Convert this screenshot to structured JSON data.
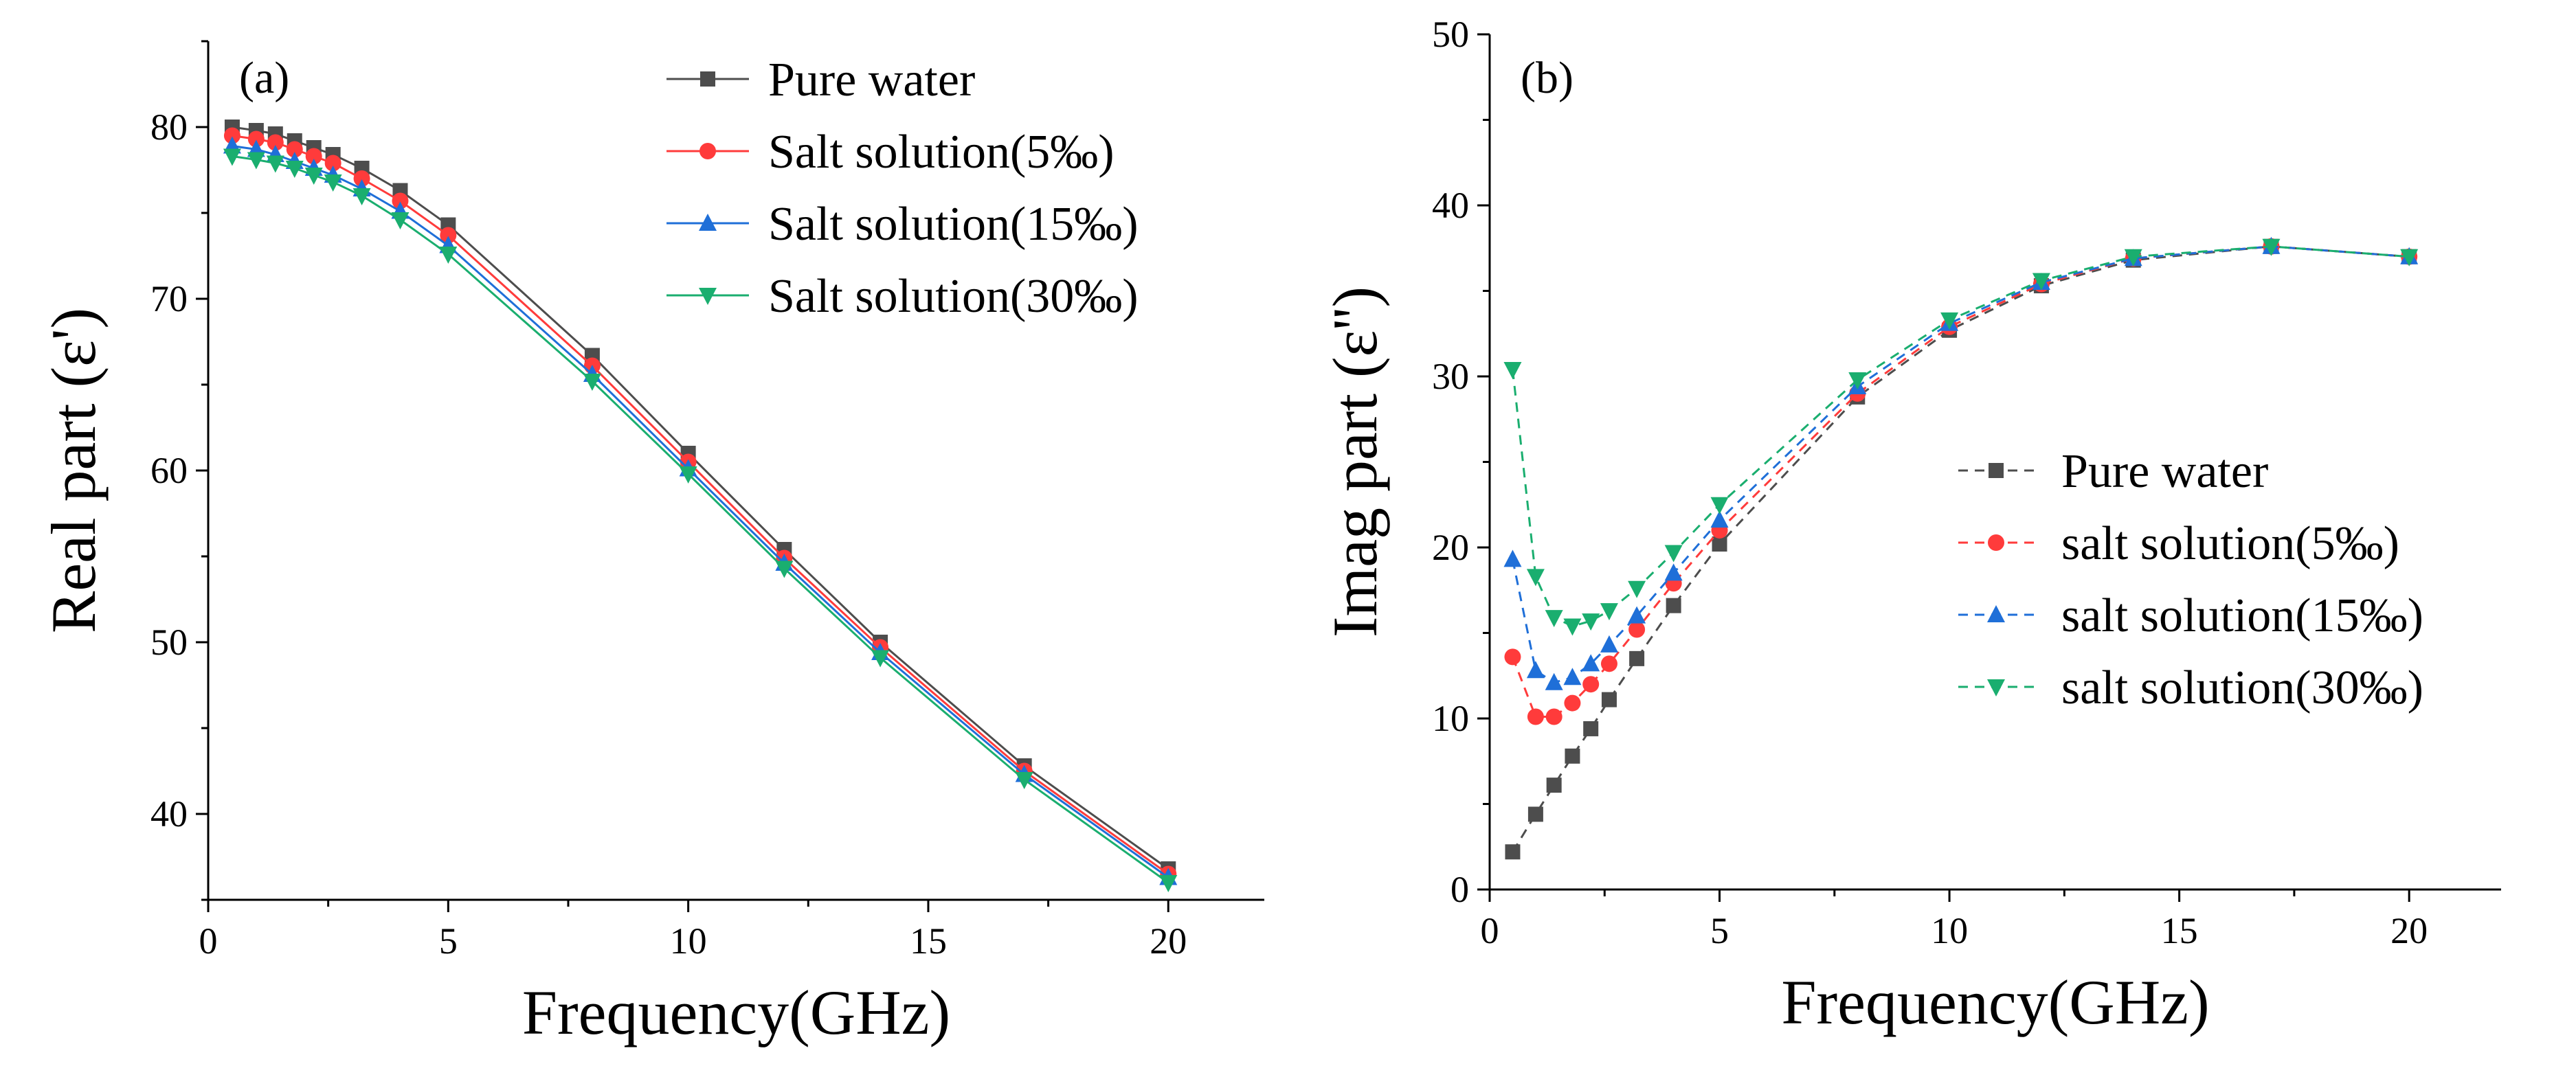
{
  "chart_data": [
    {
      "type": "line",
      "panel_label": "(a)",
      "xlabel": "Frequency(GHz)",
      "ylabel": "Real part (ε')",
      "xlim": [
        0,
        22
      ],
      "ylim": [
        35,
        85
      ],
      "xticks": [
        0,
        5,
        10,
        15,
        20
      ],
      "yticks": [
        40,
        50,
        60,
        70,
        80
      ],
      "line_style": "solid",
      "legend_position": "top-right",
      "x": [
        0.5,
        1.0,
        1.4,
        1.8,
        2.2,
        2.6,
        3.2,
        4.0,
        5.0,
        8.0,
        10.0,
        12.0,
        14.0,
        17.0,
        20.0
      ],
      "series": [
        {
          "name": "Pure water",
          "color": "#4d4d4d",
          "marker": "square",
          "values": [
            80.0,
            79.8,
            79.6,
            79.2,
            78.8,
            78.4,
            77.6,
            76.3,
            74.3,
            66.7,
            61.0,
            55.4,
            50.0,
            42.8,
            36.8
          ]
        },
        {
          "name": "Salt solution(5‰)",
          "color": "#ff3b3b",
          "marker": "circle",
          "values": [
            79.5,
            79.3,
            79.1,
            78.7,
            78.3,
            77.9,
            77.0,
            75.7,
            73.7,
            66.1,
            60.5,
            54.9,
            49.7,
            42.5,
            36.5
          ]
        },
        {
          "name": "Salt solution(15‰)",
          "color": "#1f6fd8",
          "marker": "triangle-up",
          "values": [
            78.9,
            78.7,
            78.4,
            78.0,
            77.6,
            77.2,
            76.4,
            75.1,
            73.1,
            65.6,
            60.1,
            54.6,
            49.4,
            42.3,
            36.3
          ]
        },
        {
          "name": "Salt solution(30‰)",
          "color": "#1aae6f",
          "marker": "triangle-down",
          "values": [
            78.3,
            78.1,
            77.9,
            77.6,
            77.2,
            76.8,
            76.0,
            74.6,
            72.6,
            65.2,
            59.8,
            54.3,
            49.1,
            42.0,
            36.0
          ]
        }
      ]
    },
    {
      "type": "line",
      "panel_label": "(b)",
      "xlabel": "Frequency(GHz)",
      "ylabel": "Imag part (ε'')",
      "xlim": [
        0,
        22
      ],
      "ylim": [
        0,
        50
      ],
      "xticks": [
        0,
        5,
        10,
        15,
        20
      ],
      "yticks": [
        0,
        10,
        20,
        30,
        40,
        50
      ],
      "line_style": "dashed",
      "legend_position": "center-right",
      "x": [
        0.5,
        1.0,
        1.4,
        1.8,
        2.2,
        2.6,
        3.2,
        4.0,
        5.0,
        8.0,
        10.0,
        12.0,
        14.0,
        17.0,
        20.0
      ],
      "series": [
        {
          "name": "Pure water",
          "color": "#4d4d4d",
          "marker": "square",
          "values": [
            2.2,
            4.4,
            6.1,
            7.8,
            9.4,
            11.1,
            13.5,
            16.6,
            20.2,
            28.8,
            32.7,
            35.3,
            36.8,
            37.6,
            37.0
          ]
        },
        {
          "name": "salt solution(5‰)",
          "color": "#ff3b3b",
          "marker": "circle",
          "values": [
            13.6,
            10.1,
            10.1,
            10.9,
            12.0,
            13.2,
            15.2,
            17.9,
            21.0,
            29.0,
            32.9,
            35.4,
            36.9,
            37.6,
            37.0
          ]
        },
        {
          "name": "salt solution(15‰)",
          "color": "#1f6fd8",
          "marker": "triangle-up",
          "values": [
            19.3,
            12.8,
            12.1,
            12.4,
            13.2,
            14.3,
            16.0,
            18.5,
            21.6,
            29.4,
            33.1,
            35.5,
            36.9,
            37.6,
            37.0
          ]
        },
        {
          "name": "salt solution(30‰)",
          "color": "#1aae6f",
          "marker": "triangle-down",
          "values": [
            30.4,
            18.3,
            15.9,
            15.4,
            15.7,
            16.3,
            17.6,
            19.7,
            22.5,
            29.8,
            33.3,
            35.6,
            37.0,
            37.6,
            37.0
          ]
        }
      ]
    }
  ]
}
